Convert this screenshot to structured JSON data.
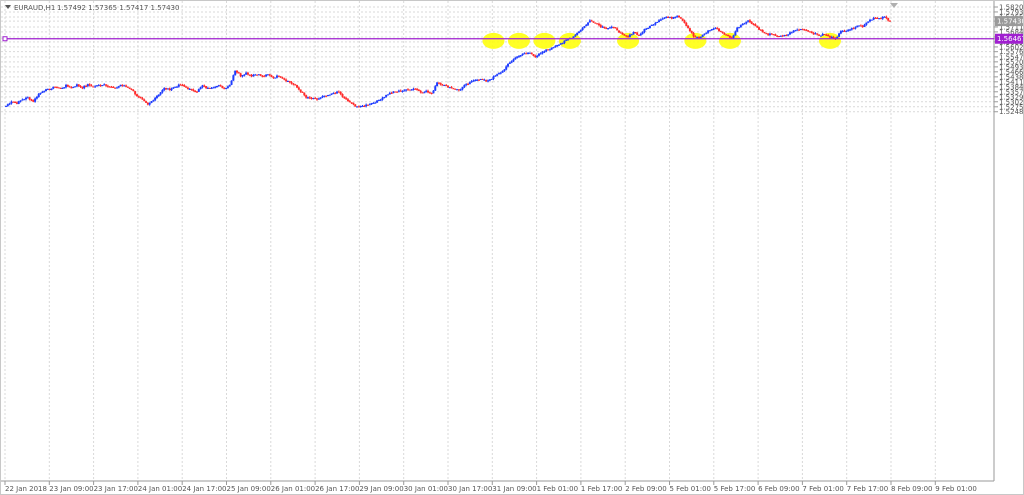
{
  "header": {
    "symbol_label": "EURAUD,H1",
    "ohlc": "1.57492 1.57365 1.57417 1.57430"
  },
  "colors": {
    "bull": "#1e3cff",
    "bear": "#ff2a2a",
    "level_line": "#a020d0",
    "highlight": "#ffff00",
    "grid": "#d9d9d9"
  },
  "chart_data": {
    "type": "candlestick",
    "symbol": "EURAUD",
    "timeframe": "H1",
    "ylim": [
      1.3248,
      1.582
    ],
    "y_ticks": [
      "1.58200",
      "1.57930",
      "1.57655",
      "1.57430",
      "1.57110",
      "1.56840",
      "1.56565",
      "1.56467",
      "1.56295",
      "1.56020",
      "1.55760",
      "1.55475",
      "1.55205",
      "1.54930",
      "1.54660",
      "1.54385",
      "1.54115",
      "1.53840",
      "1.53570",
      "1.53295",
      "1.53025",
      "1.52750",
      "1.52480"
    ],
    "x_ticks": [
      "22 Jan 2018",
      "23 Jan 09:00",
      "23 Jan 17:00",
      "24 Jan 01:00",
      "24 Jan 17:00",
      "25 Jan 09:00",
      "26 Jan 01:00",
      "26 Jan 17:00",
      "29 Jan 09:00",
      "30 Jan 01:00",
      "30 Jan 17:00",
      "31 Jan 09:00",
      "1 Feb 01:00",
      "1 Feb 17:00",
      "2 Feb 09:00",
      "5 Feb 01:00",
      "5 Feb 17:00",
      "6 Feb 09:00",
      "7 Feb 01:00",
      "7 Feb 17:00",
      "8 Feb 09:00",
      "9 Feb 01:00"
    ],
    "current_price": "1.57430",
    "horizontal_level": {
      "price": 1.56467,
      "label": "1.56467"
    },
    "highlighted_touches_near": 1.5646,
    "series": [
      {
        "name": "",
        "close_path": [
          1.528,
          1.5305,
          1.5295,
          1.5315,
          1.5325,
          1.5305,
          1.5345,
          1.5365,
          1.537,
          1.5385,
          1.5375,
          1.539,
          1.538,
          1.5395,
          1.538,
          1.5395,
          1.5385,
          1.5392,
          1.5398,
          1.5385,
          1.5375,
          1.5395,
          1.5385,
          1.537,
          1.5335,
          1.531,
          1.5285,
          1.5315,
          1.5345,
          1.5375,
          1.537,
          1.5385,
          1.5395,
          1.538,
          1.5365,
          1.536,
          1.539,
          1.5375,
          1.5385,
          1.539,
          1.5375,
          1.5395,
          1.5475,
          1.5445,
          1.546,
          1.5445,
          1.5455,
          1.544,
          1.545,
          1.5435,
          1.5445,
          1.5425,
          1.541,
          1.539,
          1.536,
          1.5325,
          1.532,
          1.5315,
          1.533,
          1.5335,
          1.535,
          1.5355,
          1.532,
          1.53,
          1.528,
          1.5275,
          1.5285,
          1.5295,
          1.5305,
          1.5325,
          1.5345,
          1.5355,
          1.536,
          1.5365,
          1.537,
          1.5375,
          1.5355,
          1.536,
          1.5345,
          1.541,
          1.5395,
          1.5385,
          1.5375,
          1.5365,
          1.539,
          1.5405,
          1.5425,
          1.5425,
          1.5415,
          1.543,
          1.545,
          1.547,
          1.5505,
          1.5535,
          1.5555,
          1.5565,
          1.557,
          1.555,
          1.5565,
          1.5585,
          1.5595,
          1.5615,
          1.5625,
          1.5645,
          1.566,
          1.5688,
          1.5715,
          1.5745,
          1.5735,
          1.5715,
          1.5705,
          1.571,
          1.5695,
          1.5665,
          1.5655,
          1.5685,
          1.5665,
          1.5695,
          1.5715,
          1.5735,
          1.5755,
          1.5765,
          1.576,
          1.5775,
          1.575,
          1.5705,
          1.566,
          1.565,
          1.5675,
          1.5695,
          1.5705,
          1.5685,
          1.5665,
          1.565,
          1.5705,
          1.573,
          1.5745,
          1.5725,
          1.57,
          1.5675,
          1.567,
          1.5665,
          1.566,
          1.5665,
          1.5685,
          1.5695,
          1.57,
          1.569,
          1.5675,
          1.5665,
          1.567,
          1.5655,
          1.565,
          1.5685,
          1.5695,
          1.57,
          1.572,
          1.5715,
          1.5745,
          1.576,
          1.5755,
          1.5765,
          1.5743
        ]
      }
    ]
  }
}
